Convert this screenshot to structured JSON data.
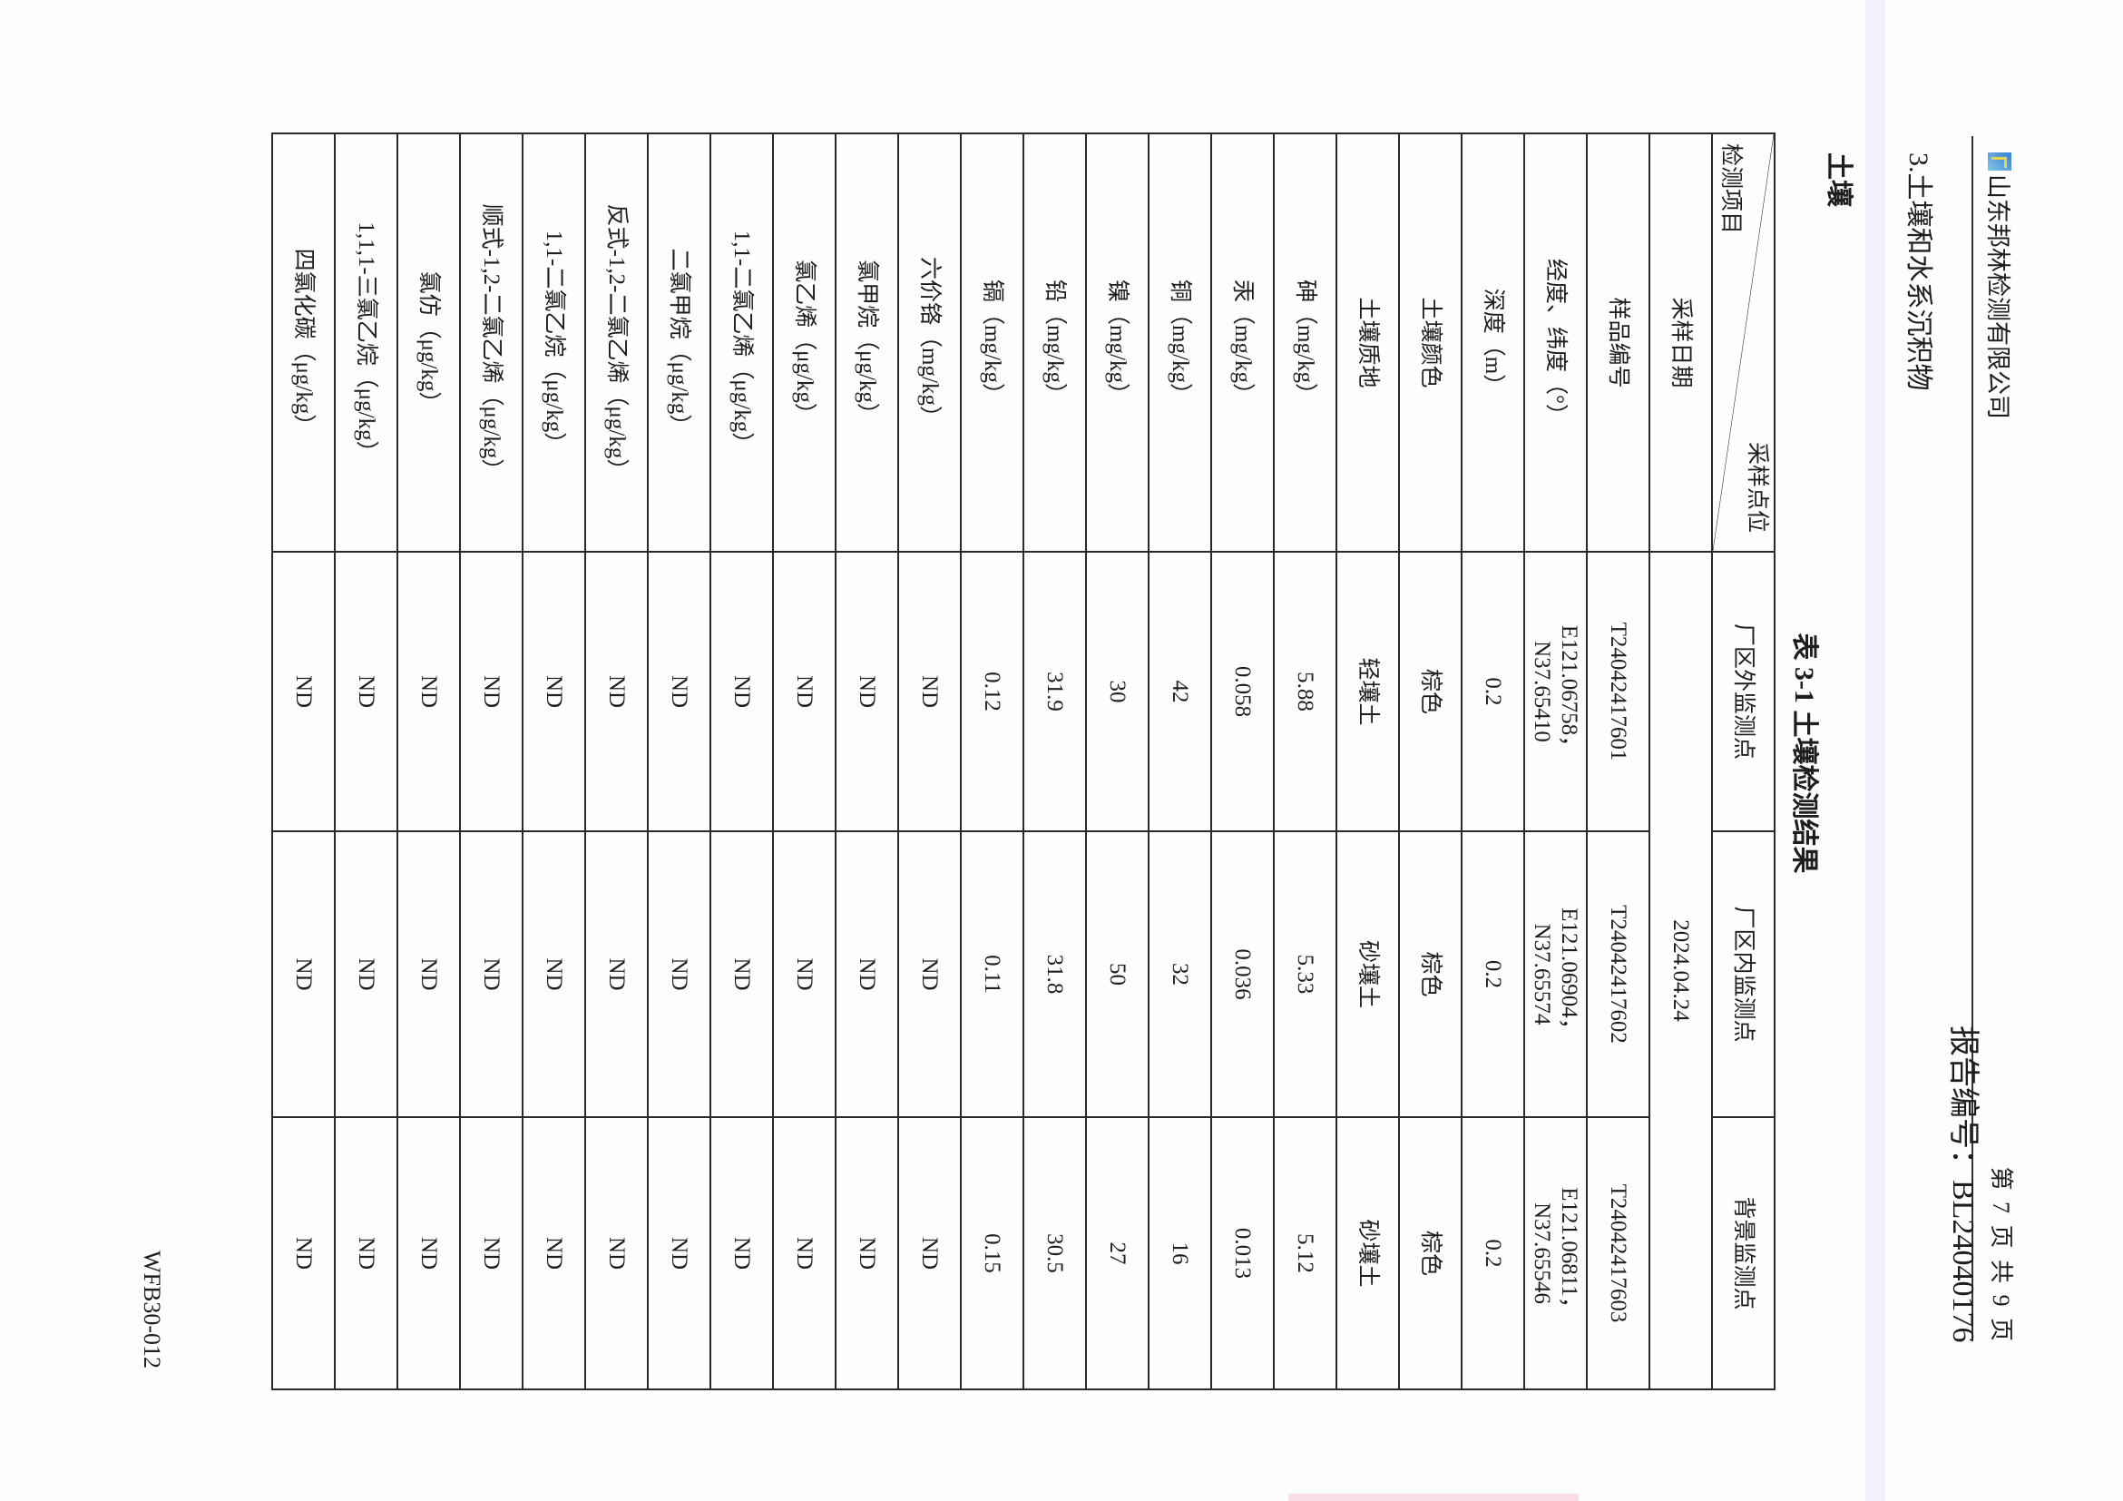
{
  "header": {
    "company": "山东邦林检测有限公司",
    "page_number": "第 7 页 共 9 页",
    "report_number": "报告编号：BL24040176"
  },
  "section_title": "3.土壤和水系沉积物",
  "subsection_title": "土壤",
  "table_caption": "表 3-1  土壤检测结果",
  "table": {
    "corner_top": "采样点位",
    "corner_bottom": "检测项目",
    "columns": [
      "厂区外监测点",
      "厂区内监测点",
      "背景监测点"
    ],
    "date_label": "采样日期",
    "date_value": "2024.04.24",
    "rows": [
      {
        "label": "样品编号",
        "values": [
          "T24042417601",
          "T24042417602",
          "T24042417603"
        ]
      },
      {
        "label": "经度、纬度（°）",
        "values": [
          [
            "E121.06758，",
            "N37.65410"
          ],
          [
            "E121.06904，",
            "N37.65574"
          ],
          [
            "E121.06811，",
            "N37.65546"
          ]
        ]
      },
      {
        "label": "深度（m）",
        "values": [
          "0.2",
          "0.2",
          "0.2"
        ]
      },
      {
        "label": "土壤颜色",
        "values": [
          "棕色",
          "棕色",
          "棕色"
        ]
      },
      {
        "label": "土壤质地",
        "values": [
          "轻壤土",
          "砂壤土",
          "砂壤土"
        ]
      },
      {
        "label": "砷（mg/kg）",
        "values": [
          "5.88",
          "5.33",
          "5.12"
        ]
      },
      {
        "label": "汞（mg/kg）",
        "values": [
          "0.058",
          "0.036",
          "0.013"
        ]
      },
      {
        "label": "铜（mg/kg）",
        "values": [
          "42",
          "32",
          "16"
        ]
      },
      {
        "label": "镍（mg/kg）",
        "values": [
          "30",
          "50",
          "27"
        ]
      },
      {
        "label": "铅（mg/kg）",
        "values": [
          "31.9",
          "31.8",
          "30.5"
        ]
      },
      {
        "label": "镉（mg/kg）",
        "values": [
          "0.12",
          "0.11",
          "0.15"
        ]
      },
      {
        "label": "六价铬（mg/kg）",
        "values": [
          "ND",
          "ND",
          "ND"
        ]
      },
      {
        "label": "氯甲烷（μg/kg）",
        "values": [
          "ND",
          "ND",
          "ND"
        ]
      },
      {
        "label": "氯乙烯（μg/kg）",
        "values": [
          "ND",
          "ND",
          "ND"
        ]
      },
      {
        "label": "1,1-二氯乙烯（μg/kg）",
        "values": [
          "ND",
          "ND",
          "ND"
        ]
      },
      {
        "label": "二氯甲烷（μg/kg）",
        "values": [
          "ND",
          "ND",
          "ND"
        ]
      },
      {
        "label": "反式-1,2-二氯乙烯（μg/kg）",
        "values": [
          "ND",
          "ND",
          "ND"
        ]
      },
      {
        "label": "1,1-二氯乙烷（μg/kg）",
        "values": [
          "ND",
          "ND",
          "ND"
        ]
      },
      {
        "label": "顺式-1,2-二氯乙烯（μg/kg）",
        "values": [
          "ND",
          "ND",
          "ND"
        ]
      },
      {
        "label": "氯仿（μg/kg）",
        "values": [
          "ND",
          "ND",
          "ND"
        ]
      },
      {
        "label": "1,1,1-三氯乙烷（μg/kg）",
        "values": [
          "ND",
          "ND",
          "ND"
        ]
      },
      {
        "label": "四氯化碳（μg/kg）",
        "values": [
          "ND",
          "ND",
          "ND"
        ]
      }
    ]
  },
  "footer": {
    "form_code": "WFB30-012"
  }
}
